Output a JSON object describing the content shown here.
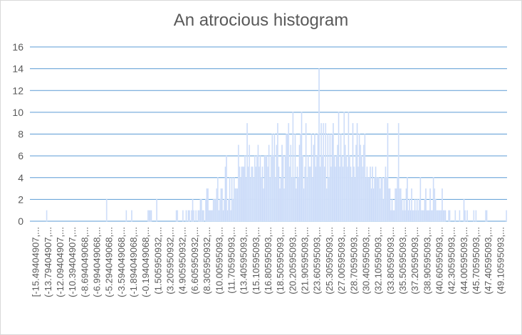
{
  "chart_data": {
    "type": "bar",
    "title": "An atrocious histogram",
    "xlabel": "",
    "ylabel": "",
    "ylim": [
      0,
      16
    ],
    "yticks": [
      0,
      2,
      4,
      6,
      8,
      10,
      12,
      14,
      16
    ],
    "grid": true,
    "legend": "none",
    "bar_color": "#c9daf8",
    "grid_color": "#5b9bd5",
    "category_labels": [
      "[-15.49404907,...",
      "(-13.79404907,...",
      "(-12.09404907,...",
      "(-10.39404907,...",
      "(-8.694049068,...",
      "(-6.994049068,...",
      "(-5.294049068,...",
      "(-3.594049068,...",
      "(-1.894049068,...",
      "(-0.194049068,...",
      "(1.505950932,...",
      "(3.205950932,...",
      "(4.905950932,...",
      "(6.605950932,...",
      "(8.305950932,...",
      "(10.00595093,...",
      "(11.70595093,...",
      "(13.40595093,...",
      "(15.10595093,...",
      "(16.80595093,...",
      "(18.50595093,...",
      "(20.20595093,...",
      "(21.90595093,...",
      "(23.60595093,...",
      "(25.30595093,...",
      "(27.00595093,...",
      "(28.70595093,...",
      "(30.40595093,...",
      "(32.10595093,...",
      "(33.80595093,...",
      "(35.50595093,...",
      "(37.20595093,...",
      "(38.90595093,...",
      "(40.60595093,...",
      "(42.30595093,...",
      "(44.00595093,...",
      "(45.70595093,...",
      "(47.40595093,...",
      "(49.10595093,..."
    ],
    "values": [
      0,
      0,
      0,
      0,
      0,
      0,
      0,
      0,
      0,
      0,
      0,
      0,
      0,
      0,
      0,
      1,
      0,
      0,
      0,
      0,
      0,
      0,
      0,
      0,
      0,
      0,
      0,
      0,
      0,
      0,
      0,
      0,
      0,
      0,
      0,
      0,
      0,
      0,
      0,
      0,
      0,
      0,
      0,
      0,
      0,
      0,
      0,
      0,
      0,
      0,
      0,
      0,
      0,
      0,
      0,
      0,
      0,
      0,
      0,
      0,
      0,
      0,
      0,
      0,
      0,
      0,
      0,
      0,
      0,
      0,
      2,
      0,
      0,
      0,
      0,
      0,
      0,
      0,
      0,
      0,
      0,
      0,
      0,
      0,
      0,
      0,
      0,
      0,
      1,
      0,
      0,
      0,
      0,
      1,
      0,
      0,
      0,
      0,
      0,
      0,
      0,
      0,
      0,
      0,
      0,
      0,
      0,
      0,
      1,
      1,
      1,
      1,
      0,
      0,
      0,
      0,
      2,
      0,
      0,
      0,
      0,
      0,
      0,
      0,
      0,
      0,
      0,
      0,
      0,
      0,
      0,
      0,
      0,
      0,
      1,
      1,
      0,
      0,
      0,
      0,
      1,
      0,
      0,
      1,
      0,
      1,
      1,
      0,
      1,
      2,
      1,
      0,
      1,
      0,
      1,
      1,
      2,
      2,
      1,
      1,
      0,
      2,
      3,
      3,
      1,
      1,
      1,
      1,
      2,
      2,
      2,
      3,
      4,
      1,
      2,
      3,
      3,
      1,
      2,
      5,
      6,
      1,
      2,
      4,
      1,
      4,
      2,
      4,
      3,
      3,
      3,
      7,
      5,
      4,
      5,
      5,
      5,
      6,
      4,
      9,
      5,
      7,
      4,
      5,
      5,
      4,
      6,
      5,
      6,
      7,
      5,
      6,
      4,
      5,
      3,
      6,
      6,
      6,
      5,
      7,
      4,
      6,
      8,
      6,
      8,
      4,
      7,
      9,
      5,
      3,
      4,
      7,
      6,
      3,
      6,
      8,
      8,
      9,
      5,
      7,
      4,
      10,
      4,
      8,
      3,
      5,
      4,
      7,
      8,
      10,
      6,
      3,
      5,
      9,
      4,
      6,
      5,
      5,
      8,
      4,
      7,
      8,
      5,
      6,
      8,
      14,
      5,
      9,
      6,
      9,
      5,
      9,
      3,
      8,
      4,
      8,
      5,
      8,
      9,
      6,
      5,
      6,
      7,
      10,
      5,
      8,
      6,
      5,
      10,
      7,
      6,
      5,
      10,
      6,
      5,
      4,
      9,
      5,
      4,
      7,
      9,
      5,
      8,
      7,
      6,
      5,
      7,
      8,
      4,
      5,
      4,
      4,
      5,
      3,
      5,
      3,
      4,
      5,
      4,
      4,
      4,
      3,
      4,
      4,
      2,
      4,
      5,
      4,
      9,
      3,
      3,
      1,
      2,
      1,
      1,
      3,
      3,
      4,
      9,
      3,
      3,
      2,
      1,
      2,
      1,
      3,
      4,
      1,
      2,
      1,
      3,
      1,
      1,
      2,
      1,
      2,
      1,
      2,
      4,
      1,
      1,
      1,
      2,
      3,
      1,
      1,
      1,
      3,
      1,
      1,
      4,
      3,
      2,
      1,
      1,
      1,
      1,
      1,
      3,
      1,
      1,
      1,
      0,
      0,
      1,
      1,
      0,
      0,
      0,
      0,
      1,
      0,
      0,
      0,
      1,
      0,
      0,
      0,
      2,
      1,
      0,
      1,
      0,
      0,
      0,
      0,
      0,
      1,
      0,
      1,
      0,
      0,
      0,
      0,
      0,
      0,
      0,
      0,
      1,
      1,
      0,
      0,
      0,
      0,
      0,
      0,
      0,
      0,
      0,
      0,
      0,
      0,
      0,
      0,
      0,
      0,
      0,
      1
    ]
  }
}
